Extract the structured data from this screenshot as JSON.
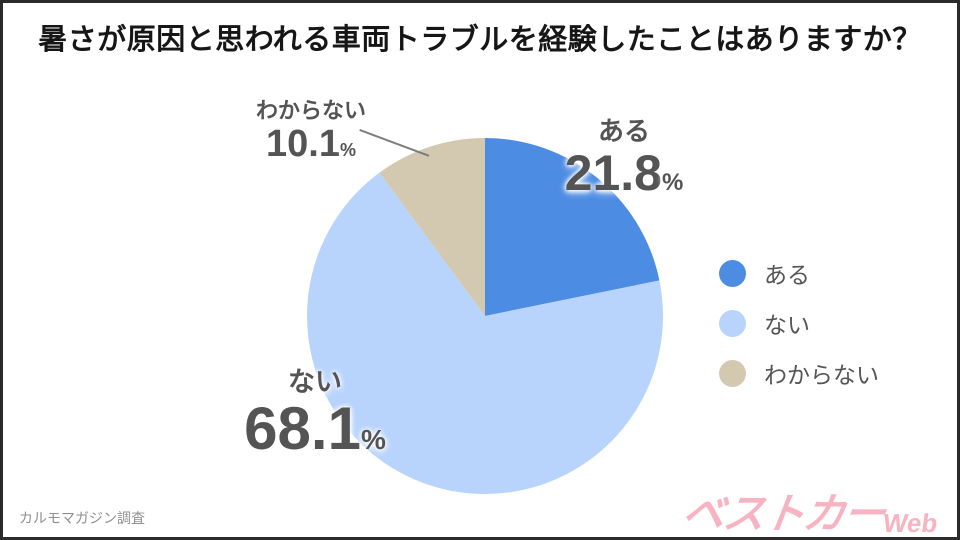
{
  "chart_data": {
    "type": "pie",
    "title": "暑さが原因と思われる車両トラブルを経験したことはありますか？",
    "unit": "%",
    "start_angle_deg": 0,
    "direction": "clockwise",
    "legend_position": "right",
    "series": [
      {
        "name": "ある",
        "value": 21.8,
        "color": "#4D8CE3"
      },
      {
        "name": "ない",
        "value": 68.1,
        "color": "#B8D4FC"
      },
      {
        "name": "わからない",
        "value": 10.1,
        "color": "#D3C8B0"
      }
    ]
  },
  "footer": {
    "source": "カルモマガジン調査",
    "logo_text": "ベストカー",
    "logo_suffix": "Web"
  }
}
